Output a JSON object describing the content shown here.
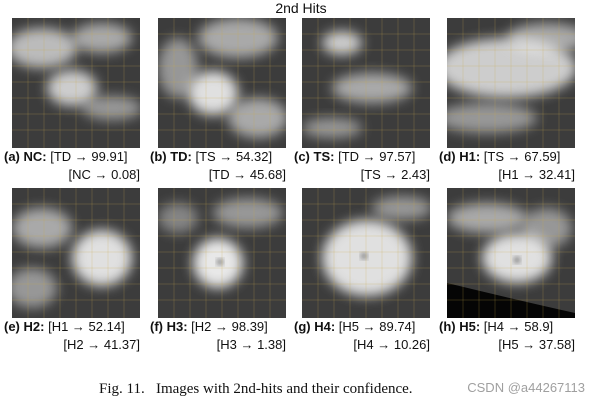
{
  "title": "2nd Hits",
  "panels": [
    {
      "label": "(a) NC:",
      "line1": "[TD → 99.91]",
      "line2": "[NC → 0.08]"
    },
    {
      "label": "(b) TD:",
      "line1": "[TS → 54.32]",
      "line2": "[TD → 45.68]"
    },
    {
      "label": "(c) TS:",
      "line1": "[TD → 97.57]",
      "line2": "[TS → 2.43]"
    },
    {
      "label": "(d) H1:",
      "line1": "[TS → 67.59]",
      "line2": "[H1 → 32.41]"
    },
    {
      "label": "(e) H2:",
      "line1": "[H1 → 52.14]",
      "line2": "[H2 → 41.37]"
    },
    {
      "label": "(f) H3:",
      "line1": "[H2 → 98.39]",
      "line2": "[H3 → 1.38]"
    },
    {
      "label": "(g) H4:",
      "line1": "[H5 → 89.74]",
      "line2": "[H4 → 10.26]"
    },
    {
      "label": "(h) H5:",
      "line1": "[H4 → 58.9]",
      "line2": "[H5 → 37.58]"
    }
  ],
  "caption": "Fig. 11.   Images with 2nd-hits and their confidence.",
  "watermark": "CSDN @a44267113"
}
